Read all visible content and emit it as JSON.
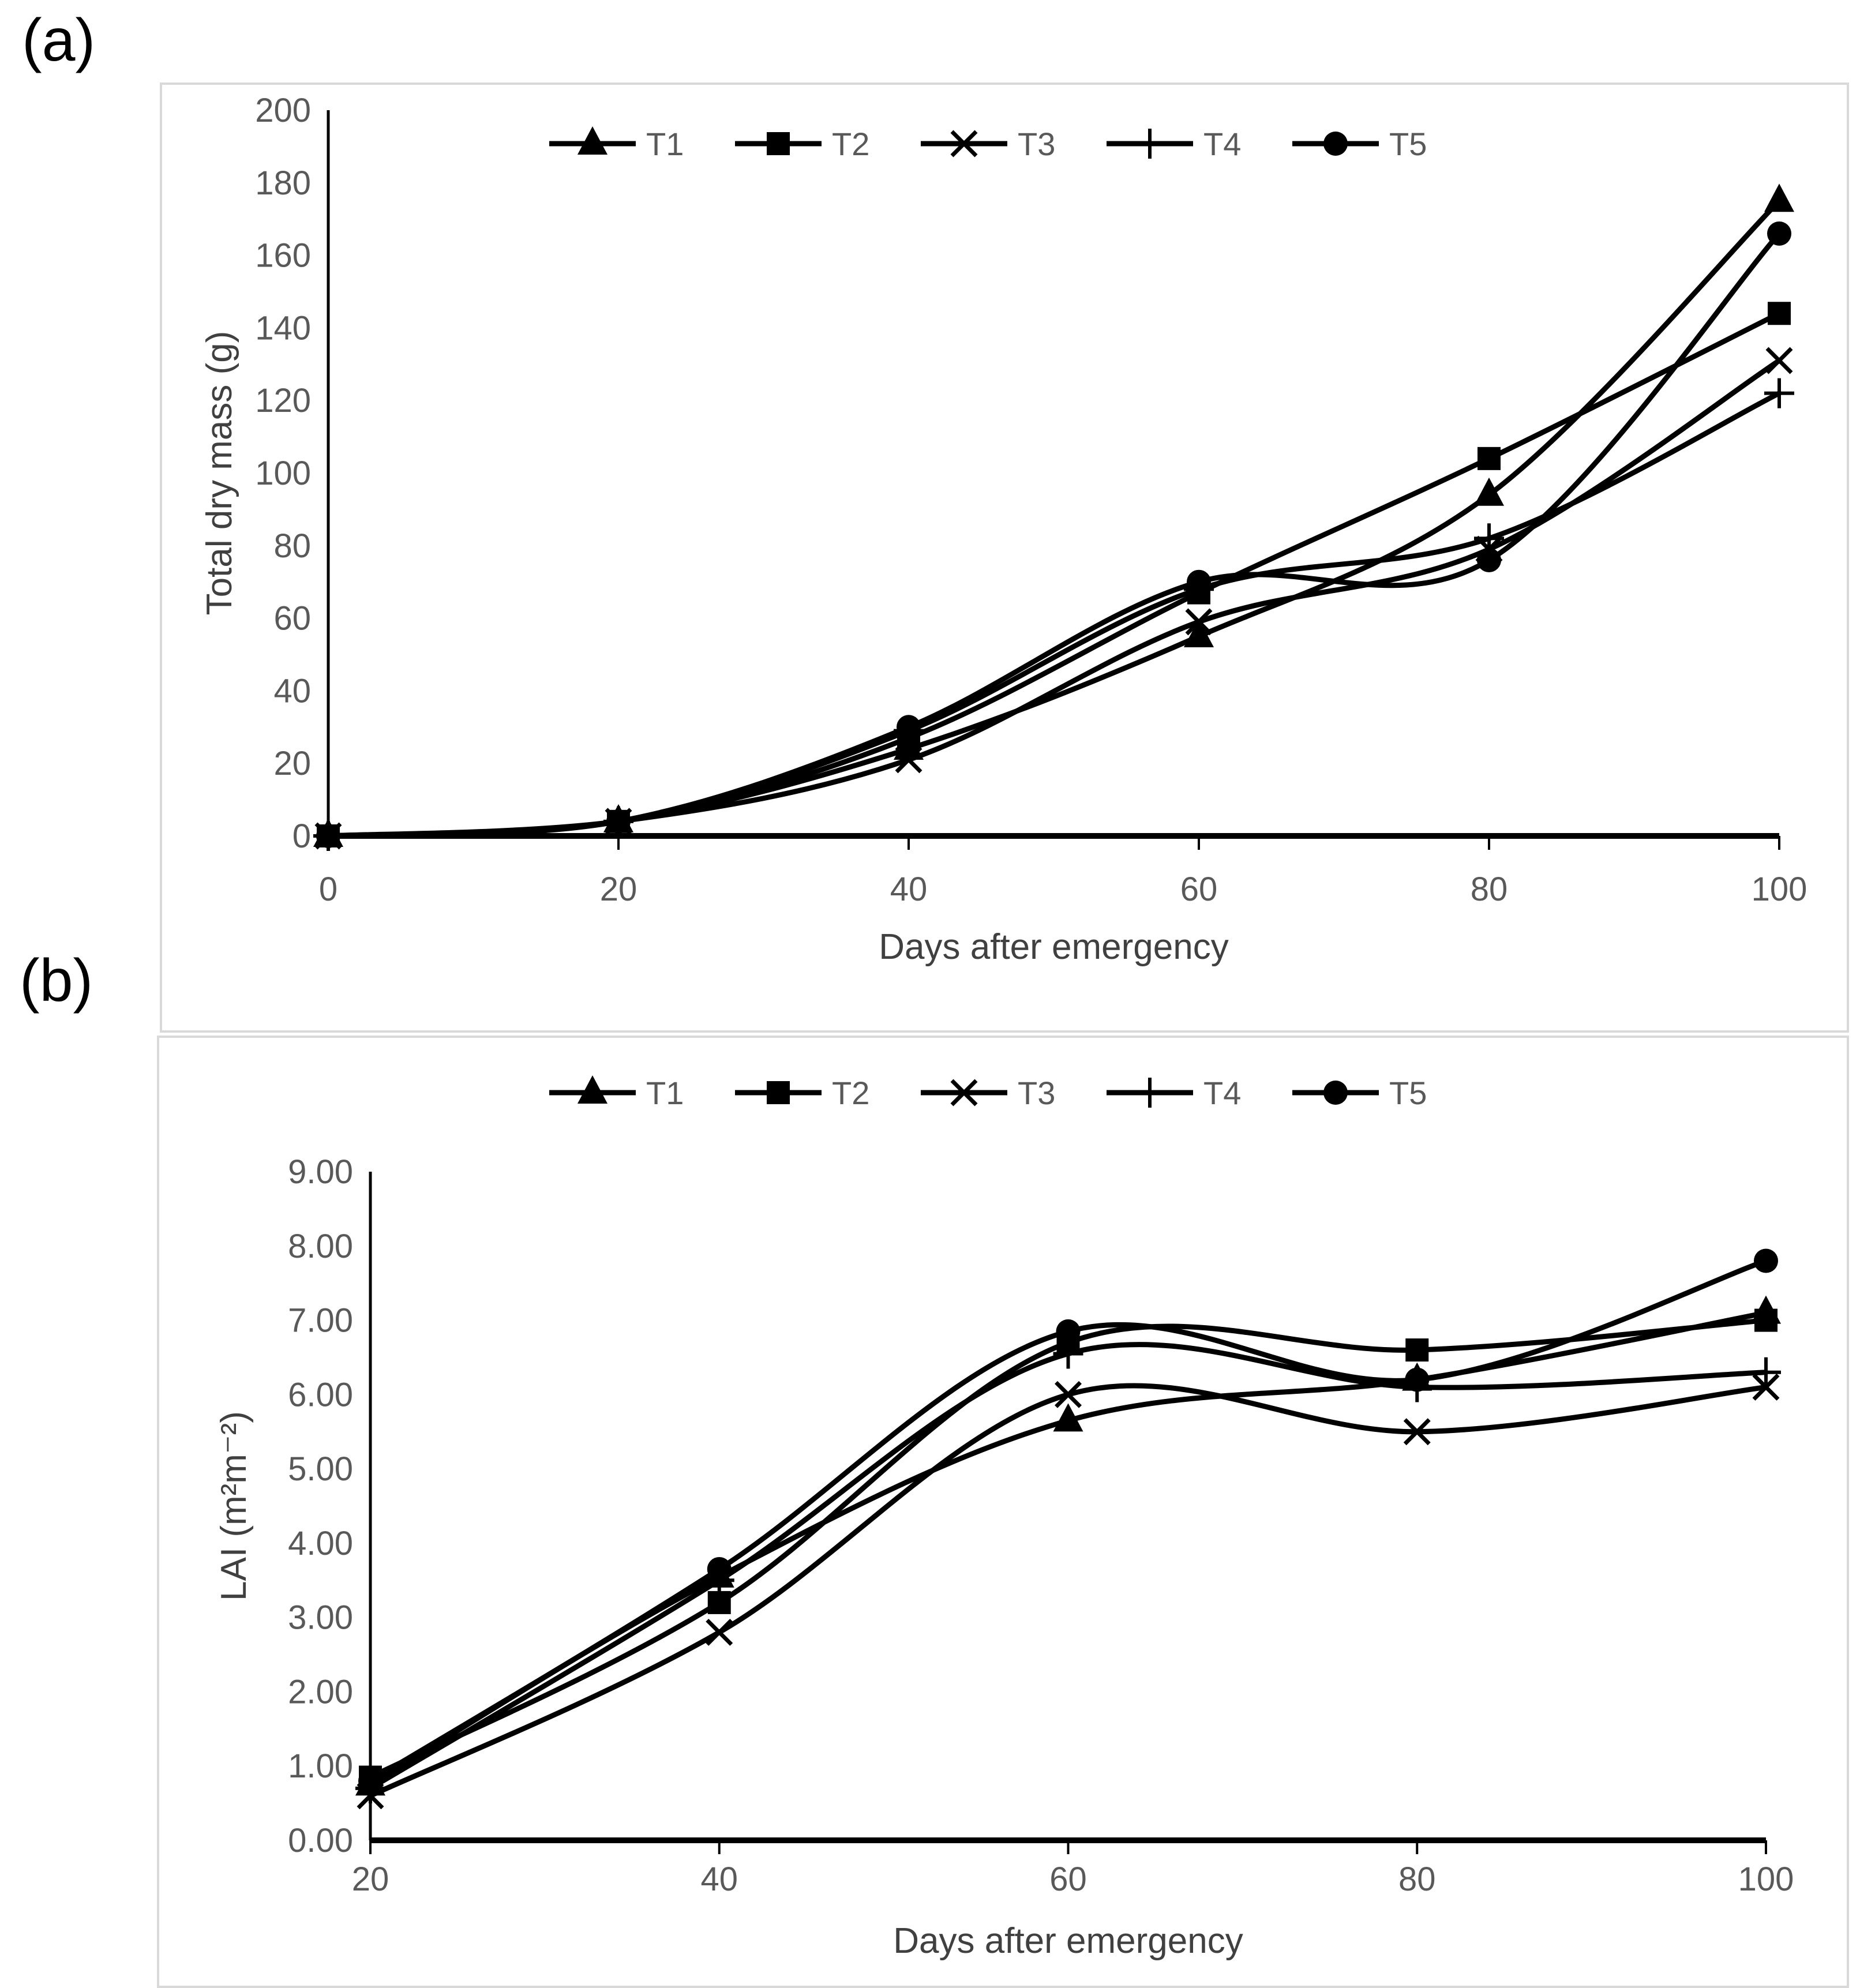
{
  "figure": {
    "background": "#ffffff",
    "panel_border_color": "#d9d9d9",
    "line_color": "#000000",
    "axis_text_color": "#595959"
  },
  "panels": [
    {
      "label": "(a)"
    },
    {
      "label": "(b)"
    }
  ],
  "legend": {
    "items": [
      {
        "label": "T1",
        "marker": "triangle"
      },
      {
        "label": "T2",
        "marker": "square"
      },
      {
        "label": "T3",
        "marker": "x"
      },
      {
        "label": "T4",
        "marker": "plus"
      },
      {
        "label": "T5",
        "marker": "circle"
      }
    ]
  },
  "chart_data": [
    {
      "id": "a",
      "type": "line",
      "title": "",
      "xlabel": "Days after emergency",
      "ylabel": "Total dry mass (g)",
      "x": [
        0,
        20,
        40,
        60,
        80,
        100
      ],
      "xlim": [
        0,
        100
      ],
      "ylim": [
        0,
        200
      ],
      "xticks": [
        0,
        20,
        40,
        60,
        80,
        100
      ],
      "yticks": [
        0,
        20,
        40,
        60,
        80,
        100,
        120,
        140,
        160,
        180,
        200
      ],
      "ytick_decimals": 0,
      "grid": false,
      "legend_position": "top-center",
      "series": [
        {
          "name": "T1",
          "marker": "triangle",
          "values": [
            0,
            4,
            24,
            55,
            94,
            175
          ]
        },
        {
          "name": "T2",
          "marker": "square",
          "values": [
            0,
            4,
            27,
            67,
            104,
            144
          ]
        },
        {
          "name": "T3",
          "marker": "x",
          "values": [
            0,
            4,
            21,
            59,
            79,
            131
          ]
        },
        {
          "name": "T4",
          "marker": "plus",
          "values": [
            0,
            4,
            29,
            68,
            82,
            122
          ]
        },
        {
          "name": "T5",
          "marker": "circle",
          "values": [
            0,
            4,
            30,
            70,
            76,
            166
          ]
        }
      ]
    },
    {
      "id": "b",
      "type": "line",
      "title": "",
      "xlabel": "Days after emergency",
      "ylabel": "LAI (m²m⁻²)",
      "x": [
        20,
        40,
        60,
        80,
        100
      ],
      "xlim": [
        20,
        100
      ],
      "ylim": [
        0,
        9
      ],
      "xticks": [
        20,
        40,
        60,
        80,
        100
      ],
      "yticks": [
        0,
        1,
        2,
        3,
        4,
        5,
        6,
        7,
        8,
        9
      ],
      "ytick_decimals": 2,
      "grid": false,
      "legend_position": "top-center",
      "series": [
        {
          "name": "T1",
          "marker": "triangle",
          "values": [
            0.75,
            3.55,
            5.65,
            6.2,
            7.1
          ]
        },
        {
          "name": "T2",
          "marker": "square",
          "values": [
            0.85,
            3.2,
            6.7,
            6.6,
            7.0
          ]
        },
        {
          "name": "T3",
          "marker": "x",
          "values": [
            0.6,
            2.8,
            6.0,
            5.5,
            6.1
          ]
        },
        {
          "name": "T4",
          "marker": "plus",
          "values": [
            0.7,
            3.5,
            6.55,
            6.1,
            6.3
          ]
        },
        {
          "name": "T5",
          "marker": "circle",
          "values": [
            0.8,
            3.65,
            6.85,
            6.2,
            7.8
          ]
        }
      ]
    }
  ]
}
